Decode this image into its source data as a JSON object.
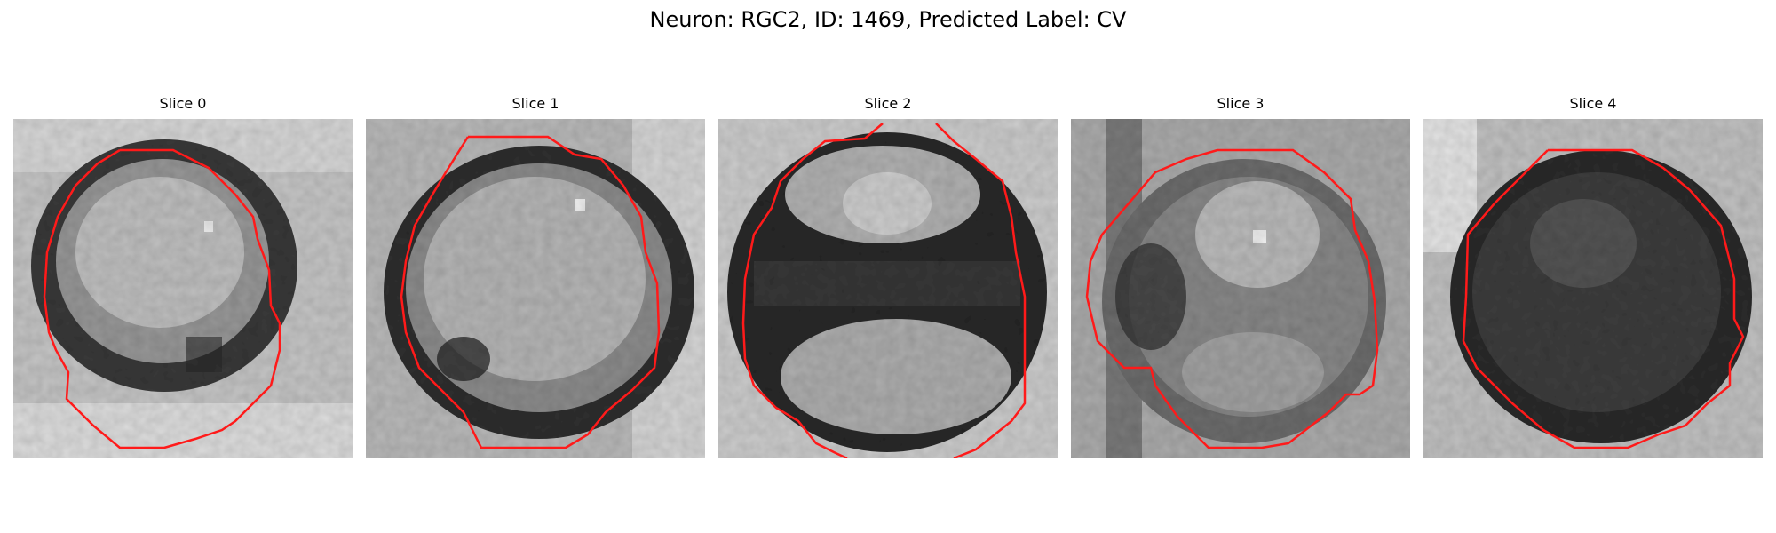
{
  "figure": {
    "title": "Neuron: RGC2, ID: 1469, Predicted Label: CV"
  },
  "contour_color": "#ff1a1a",
  "panels": [
    {
      "title": "Slice 0"
    },
    {
      "title": "Slice 1"
    },
    {
      "title": "Slice 2"
    },
    {
      "title": "Slice 3"
    },
    {
      "title": "Slice 4"
    }
  ]
}
